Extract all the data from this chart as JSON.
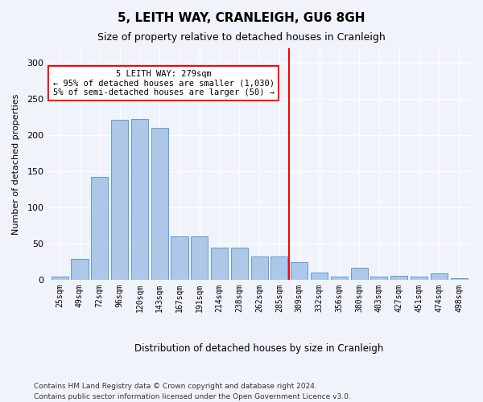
{
  "title": "5, LEITH WAY, CRANLEIGH, GU6 8GH",
  "subtitle": "Size of property relative to detached houses in Cranleigh",
  "xlabel": "Distribution of detached houses by size in Cranleigh",
  "ylabel": "Number of detached properties",
  "categories": [
    "25sqm",
    "49sqm",
    "72sqm",
    "96sqm",
    "120sqm",
    "143sqm",
    "167sqm",
    "191sqm",
    "214sqm",
    "238sqm",
    "262sqm",
    "285sqm",
    "309sqm",
    "332sqm",
    "356sqm",
    "380sqm",
    "403sqm",
    "427sqm",
    "451sqm",
    "474sqm",
    "498sqm"
  ],
  "values": [
    4,
    29,
    142,
    221,
    222,
    210,
    60,
    60,
    44,
    44,
    32,
    32,
    24,
    10,
    4,
    17,
    4,
    6,
    4,
    9,
    2
  ],
  "bar_color": "#aec6e8",
  "bar_edge_color": "#5a9fd4",
  "vline_x": 11.5,
  "vline_color": "red",
  "annotation_text": "5 LEITH WAY: 279sqm\n← 95% of detached houses are smaller (1,030)\n5% of semi-detached houses are larger (50) →",
  "annotation_box_color": "white",
  "annotation_box_edge": "red",
  "ylim": [
    0,
    320
  ],
  "yticks": [
    0,
    50,
    100,
    150,
    200,
    250,
    300
  ],
  "footer1": "Contains HM Land Registry data © Crown copyright and database right 2024.",
  "footer2": "Contains public sector information licensed under the Open Government Licence v3.0.",
  "bg_color": "#f0f4fa",
  "plot_bg_color": "#f0f4fa"
}
